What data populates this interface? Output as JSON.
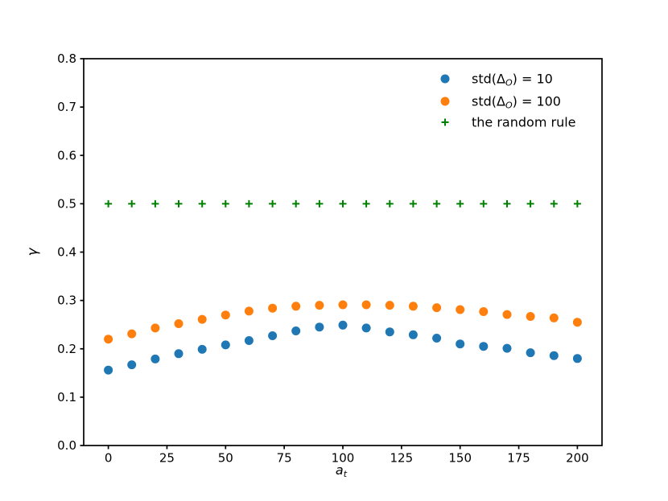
{
  "chart_data": {
    "type": "scatter",
    "title": "",
    "xlabel": {
      "main": "a",
      "sub": "t",
      "text": "a_t"
    },
    "ylabel": "γ",
    "x": [
      0,
      10,
      20,
      30,
      40,
      50,
      60,
      70,
      80,
      90,
      100,
      110,
      120,
      130,
      140,
      150,
      160,
      170,
      180,
      190,
      200
    ],
    "series": [
      {
        "name": "std(Δ_O) = 10",
        "label_parts": {
          "pre": "std(Δ",
          "sub": "O",
          "post": ") = 10"
        },
        "marker": "circle",
        "color": "#1f77b4",
        "values": [
          0.156,
          0.167,
          0.179,
          0.19,
          0.199,
          0.208,
          0.217,
          0.227,
          0.237,
          0.245,
          0.249,
          0.243,
          0.235,
          0.229,
          0.222,
          0.21,
          0.205,
          0.201,
          0.192,
          0.186,
          0.18
        ]
      },
      {
        "name": "std(Δ_O) = 100",
        "label_parts": {
          "pre": "std(Δ",
          "sub": "O",
          "post": ") = 100"
        },
        "marker": "circle",
        "color": "#ff7f0e",
        "values": [
          0.22,
          0.231,
          0.243,
          0.252,
          0.261,
          0.27,
          0.278,
          0.284,
          0.288,
          0.29,
          0.291,
          0.291,
          0.29,
          0.288,
          0.285,
          0.281,
          0.277,
          0.271,
          0.267,
          0.264,
          0.255
        ]
      },
      {
        "name": "the random rule",
        "label_parts": {
          "pre": "the random rule",
          "sub": "",
          "post": ""
        },
        "marker": "plus",
        "color": "#008000",
        "values": [
          0.5,
          0.5,
          0.5,
          0.5,
          0.5,
          0.5,
          0.5,
          0.5,
          0.5,
          0.5,
          0.5,
          0.5,
          0.5,
          0.5,
          0.5,
          0.5,
          0.5,
          0.5,
          0.5,
          0.5,
          0.5
        ]
      }
    ],
    "xticks": [
      0,
      25,
      50,
      75,
      100,
      125,
      150,
      175,
      200
    ],
    "ytick_labels": [
      "0.0",
      "0.1",
      "0.2",
      "0.3",
      "0.4",
      "0.5",
      "0.6",
      "0.7",
      "0.8"
    ],
    "xlim": [
      -10.5,
      210.5
    ],
    "ylim": [
      0.0,
      0.8
    ],
    "grid": false,
    "legend": {
      "position": "upper right"
    },
    "colors": {
      "text": "#000000",
      "spine": "#000000",
      "background": "#ffffff"
    }
  }
}
